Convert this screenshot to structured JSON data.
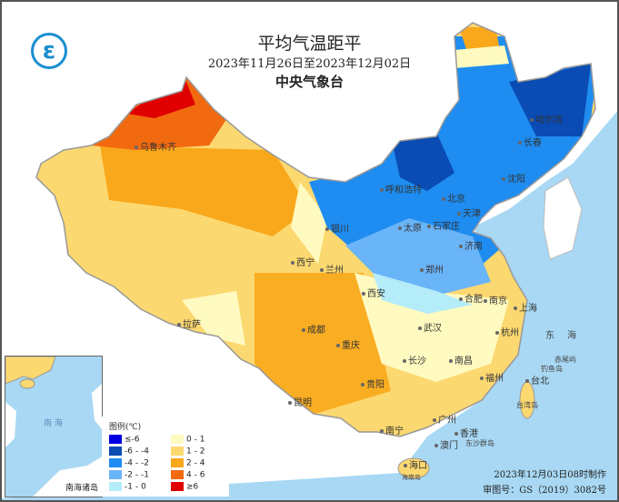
{
  "header": {
    "title": "平均气温距平",
    "date_range": "2023年11月26日至2023年12月02日",
    "agency": "中央气象台",
    "logo_icon": "cma-logo-icon"
  },
  "cities": [
    {
      "name": "乌鲁木齐"
    },
    {
      "name": "哈尔滨"
    },
    {
      "name": "长春"
    },
    {
      "name": "沈阳"
    },
    {
      "name": "呼和浩特"
    },
    {
      "name": "北京"
    },
    {
      "name": "天津"
    },
    {
      "name": "银川"
    },
    {
      "name": "太原"
    },
    {
      "name": "石家庄"
    },
    {
      "name": "济南"
    },
    {
      "name": "西宁"
    },
    {
      "name": "兰州"
    },
    {
      "name": "郑州"
    },
    {
      "name": "西安"
    },
    {
      "name": "合肥"
    },
    {
      "name": "南京"
    },
    {
      "name": "上海"
    },
    {
      "name": "武汉"
    },
    {
      "name": "杭州"
    },
    {
      "name": "拉萨"
    },
    {
      "name": "成都"
    },
    {
      "name": "重庆"
    },
    {
      "name": "长沙"
    },
    {
      "name": "南昌"
    },
    {
      "name": "贵阳"
    },
    {
      "name": "福州"
    },
    {
      "name": "昆明"
    },
    {
      "name": "台北"
    },
    {
      "name": "南宁"
    },
    {
      "name": "广州"
    },
    {
      "name": "香港"
    },
    {
      "name": "澳门"
    },
    {
      "name": "海口"
    }
  ],
  "places": {
    "east_sea": "东海",
    "chiwei": "赤尾屿",
    "diaoyu": "钓鱼岛",
    "taiwan": "台湾岛",
    "hainan": "海南岛",
    "dongsha": "东沙群岛"
  },
  "legend": {
    "title": "图例(℃)",
    "items": [
      {
        "label": "≤-6",
        "color": "#0000e0"
      },
      {
        "label": "-6 - -4",
        "color": "#0a4bb4"
      },
      {
        "label": "-4 - -2",
        "color": "#1e8cf0"
      },
      {
        "label": "-2 - -1",
        "color": "#6ab4f8"
      },
      {
        "label": "-1 - 0",
        "color": "#b4ecfa"
      },
      {
        "label": "0 - 1",
        "color": "#fffac0"
      },
      {
        "label": "1 - 2",
        "color": "#fcd870"
      },
      {
        "label": "2 - 4",
        "color": "#f8a81a"
      },
      {
        "label": "4 - 6",
        "color": "#f26a10"
      },
      {
        "label": "≥6",
        "color": "#e00000"
      }
    ]
  },
  "inset": {
    "label": "南海诸岛",
    "sea": "南 海"
  },
  "footer": {
    "made": "2023年12月03日08时制作",
    "approval": "审图号：GS（2019）3082号"
  }
}
